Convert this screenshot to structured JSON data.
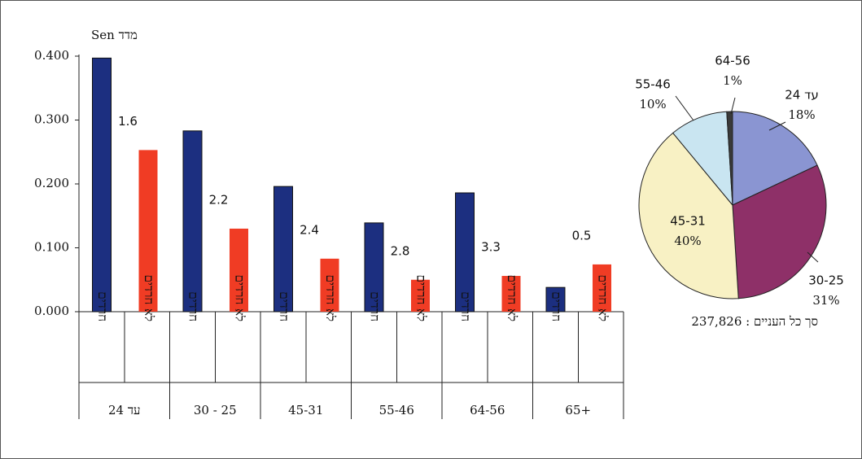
{
  "chart_data": [
    {
      "type": "bar",
      "ylabel": "מדד Sen",
      "categories": [
        "עד 24",
        "30 - 25",
        "45-31",
        "55-46",
        "64-56",
        "65+"
      ],
      "series": [
        {
          "name": "חרדים",
          "color": "#1c2f80",
          "values": [
            0.397,
            0.283,
            0.196,
            0.139,
            0.186,
            0.038
          ]
        },
        {
          "name": "לא חרדים",
          "color": "#f03c24",
          "values": [
            0.253,
            0.13,
            0.083,
            0.05,
            0.056,
            0.074
          ]
        }
      ],
      "ratios": [
        1.6,
        2.2,
        2.4,
        2.8,
        3.3,
        0.5
      ],
      "ylim": [
        0,
        0.4
      ],
      "yticks": [
        {
          "value": 0,
          "label": "0.000"
        },
        {
          "value": 0.1,
          "label": "0.100"
        },
        {
          "value": 0.2,
          "label": "0.200"
        },
        {
          "value": 0.3,
          "label": "0.300"
        },
        {
          "value": 0.4,
          "label": "0.400"
        }
      ],
      "grid": false
    },
    {
      "type": "pie",
      "title": "סך כל העניים : 237,826",
      "categories": [
        "עד 24",
        "30-25",
        "45-31",
        "55-46",
        "64-56"
      ],
      "values": [
        18,
        31,
        40,
        10,
        1
      ],
      "value_labels": [
        "18%",
        "31%",
        "40%",
        "10%",
        "1%"
      ],
      "colors": [
        "#8a95d2",
        "#8e3068",
        "#f8f1c4",
        "#c9e5f1",
        "#3a3a3a"
      ]
    }
  ]
}
